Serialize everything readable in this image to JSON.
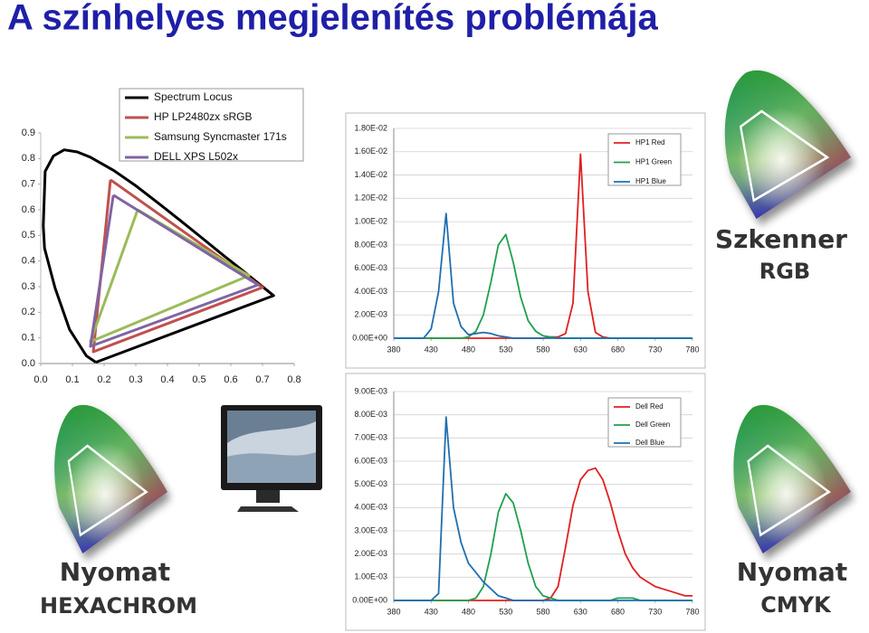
{
  "title": "A színhelyes megjelenítés problémája",
  "captions": [
    [
      "Szkenner",
      "RGB"
    ],
    [
      "Nyomat",
      "HEXACHROM"
    ],
    [
      "Nyomat",
      "CMYK"
    ]
  ],
  "chart_data": [
    {
      "type": "line",
      "legend": "upper right",
      "grid": false,
      "xlim": [
        0,
        0.8
      ],
      "xticks": [
        {
          "value": 0,
          "label": "0.0"
        },
        0.1,
        0.2,
        0.3,
        0.4,
        0.5,
        0.6,
        0.7,
        0.8
      ],
      "ylim": [
        0,
        0.9
      ],
      "yticks": [
        {
          "value": 0,
          "label": "0.0"
        },
        0.1,
        0.2,
        0.3,
        0.4,
        0.5,
        0.6,
        0.7,
        0.8,
        0.9
      ],
      "series": [
        {
          "name": "Spectrum Locus",
          "color": "#000000",
          "x": [
            0.174,
            0.144,
            0.091,
            0.045,
            0.012,
            0.008,
            0.014,
            0.04,
            0.074,
            0.115,
            0.155,
            0.23,
            0.302,
            0.373,
            0.444,
            0.512,
            0.575,
            0.627,
            0.735,
            0.174
          ],
          "values": [
            0.005,
            0.03,
            0.133,
            0.295,
            0.45,
            0.538,
            0.75,
            0.81,
            0.834,
            0.826,
            0.806,
            0.754,
            0.692,
            0.624,
            0.555,
            0.487,
            0.424,
            0.373,
            0.265,
            0.005
          ]
        },
        {
          "name": "HP LP2480zx sRGB",
          "color": "#c0504d",
          "x": [
            0.22,
            0.7,
            0.166,
            0.22
          ],
          "values": [
            0.717,
            0.297,
            0.046,
            0.717
          ]
        },
        {
          "name": "Samsung Syncmaster 171s",
          "color": "#9bbb59",
          "x": [
            0.306,
            0.657,
            0.157,
            0.306
          ],
          "values": [
            0.6,
            0.343,
            0.085,
            0.6
          ]
        },
        {
          "name": "DELL XPS L502x",
          "color": "#8064a2",
          "x": [
            0.229,
            0.686,
            0.157,
            0.229
          ],
          "values": [
            0.657,
            0.307,
            0.067,
            0.657
          ]
        }
      ]
    },
    {
      "type": "line",
      "legend": "upper right",
      "grid": true,
      "x": [
        380,
        390,
        400,
        410,
        420,
        430,
        440,
        450,
        460,
        470,
        480,
        490,
        500,
        510,
        520,
        530,
        540,
        550,
        560,
        570,
        580,
        590,
        600,
        610,
        620,
        630,
        640,
        650,
        660,
        670,
        680,
        690,
        700,
        710,
        720,
        730,
        740,
        750,
        760,
        770,
        780
      ],
      "xlim": [
        380,
        780
      ],
      "xticks": [
        380,
        430,
        480,
        530,
        580,
        630,
        680,
        730,
        780
      ],
      "ylim": [
        0,
        0.018
      ],
      "yticks": [
        {
          "value": 0,
          "label": "0.00E+00"
        },
        {
          "value": 0.002,
          "label": "2.00E-03"
        },
        {
          "value": 0.004,
          "label": "4.00E-03"
        },
        {
          "value": 0.006,
          "label": "6.00E-03"
        },
        {
          "value": 0.008,
          "label": "8.00E-03"
        },
        {
          "value": 0.01,
          "label": "1.00E-02"
        },
        {
          "value": 0.012,
          "label": "1.20E-02"
        },
        {
          "value": 0.014,
          "label": "1.40E-02"
        },
        {
          "value": 0.016,
          "label": "1.60E-02"
        },
        {
          "value": 0.018,
          "label": "1.80E-02"
        }
      ],
      "series": [
        {
          "name": "HP1 Red",
          "color": "#e02020",
          "values": [
            0,
            0,
            0,
            0,
            0,
            0,
            0,
            0,
            0,
            0,
            0,
            0,
            0,
            0,
            0,
            0,
            0,
            0,
            0,
            0,
            0,
            0.0001,
            0.0001,
            0.0004,
            0.003,
            0.0158,
            0.004,
            0.0005,
            0.0001,
            0,
            0,
            0,
            0,
            0,
            0,
            0,
            0,
            0,
            0,
            0,
            0
          ]
        },
        {
          "name": "HP1 Green",
          "color": "#20a050",
          "values": [
            0,
            0,
            0,
            0,
            0,
            0,
            0,
            0,
            0,
            0,
            0.0001,
            0.0006,
            0.002,
            0.0048,
            0.008,
            0.0089,
            0.0065,
            0.0035,
            0.0015,
            0.0006,
            0.0002,
            0.0001,
            0,
            0,
            0,
            0,
            0,
            0,
            0,
            0,
            0,
            0,
            0,
            0,
            0,
            0,
            0,
            0,
            0,
            0,
            0
          ]
        },
        {
          "name": "HP1 Blue",
          "color": "#1f6fb0",
          "values": [
            0,
            0,
            0,
            0,
            0,
            0.0008,
            0.004,
            0.0107,
            0.003,
            0.001,
            0.0003,
            0.0004,
            0.0005,
            0.0004,
            0.0002,
            0.0001,
            0,
            0,
            0,
            0,
            0,
            0,
            0,
            0,
            0,
            0,
            0,
            0,
            0,
            0,
            0,
            0,
            0,
            0,
            0,
            0,
            0,
            0,
            0,
            0,
            0
          ]
        }
      ]
    },
    {
      "type": "line",
      "legend": "upper right",
      "grid": true,
      "x": [
        380,
        390,
        400,
        410,
        420,
        430,
        440,
        450,
        460,
        470,
        480,
        490,
        500,
        510,
        520,
        530,
        540,
        550,
        560,
        570,
        580,
        590,
        600,
        610,
        620,
        630,
        640,
        650,
        660,
        670,
        680,
        690,
        700,
        710,
        720,
        730,
        740,
        750,
        760,
        770,
        780
      ],
      "xlim": [
        380,
        780
      ],
      "xticks": [
        380,
        430,
        480,
        530,
        580,
        630,
        680,
        730,
        780
      ],
      "ylim": [
        0,
        0.009
      ],
      "yticks": [
        {
          "value": 0,
          "label": "0.00E+00"
        },
        {
          "value": 0.001,
          "label": "1.00E-03"
        },
        {
          "value": 0.002,
          "label": "2.00E-03"
        },
        {
          "value": 0.003,
          "label": "3.00E-03"
        },
        {
          "value": 0.004,
          "label": "4.00E-03"
        },
        {
          "value": 0.005,
          "label": "5.00E-03"
        },
        {
          "value": 0.006,
          "label": "6.00E-03"
        },
        {
          "value": 0.007,
          "label": "7.00E-03"
        },
        {
          "value": 0.008,
          "label": "8.00E-03"
        },
        {
          "value": 0.009,
          "label": "9.00E-03"
        }
      ],
      "series": [
        {
          "name": "Dell Red",
          "color": "#e02020",
          "values": [
            0,
            0,
            0,
            0,
            0,
            0,
            0,
            0,
            0,
            0,
            0,
            0,
            0,
            0,
            0,
            0,
            0,
            0,
            0,
            0,
            0,
            0.0001,
            0.0006,
            0.0023,
            0.0041,
            0.0052,
            0.0056,
            0.0057,
            0.0052,
            0.0042,
            0.003,
            0.002,
            0.0014,
            0.001,
            0.0008,
            0.0006,
            0.0005,
            0.0004,
            0.0003,
            0.0002,
            0.0002
          ]
        },
        {
          "name": "Dell Green",
          "color": "#20a050",
          "values": [
            0,
            0,
            0,
            0,
            0,
            0,
            0,
            0,
            0,
            0,
            0,
            0.0001,
            0.0006,
            0.002,
            0.0038,
            0.0046,
            0.0042,
            0.003,
            0.0016,
            0.0006,
            0.0002,
            0.0001,
            0,
            0,
            0,
            0,
            0,
            0,
            0,
            0,
            0.0001,
            0.0001,
            0.0001,
            0,
            0,
            0,
            0,
            0,
            0,
            0,
            0
          ]
        },
        {
          "name": "Dell Blue",
          "color": "#1f6fb0",
          "values": [
            0,
            0,
            0,
            0,
            0,
            0,
            0.0003,
            0.0079,
            0.004,
            0.0025,
            0.0016,
            0.0012,
            0.0008,
            0.0005,
            0.0002,
            0.0001,
            0,
            0,
            0,
            0,
            0,
            0,
            0,
            0,
            0,
            0,
            0,
            0,
            0,
            0,
            0,
            0,
            0,
            0,
            0,
            0,
            0,
            0,
            0,
            0,
            0
          ]
        }
      ]
    }
  ]
}
